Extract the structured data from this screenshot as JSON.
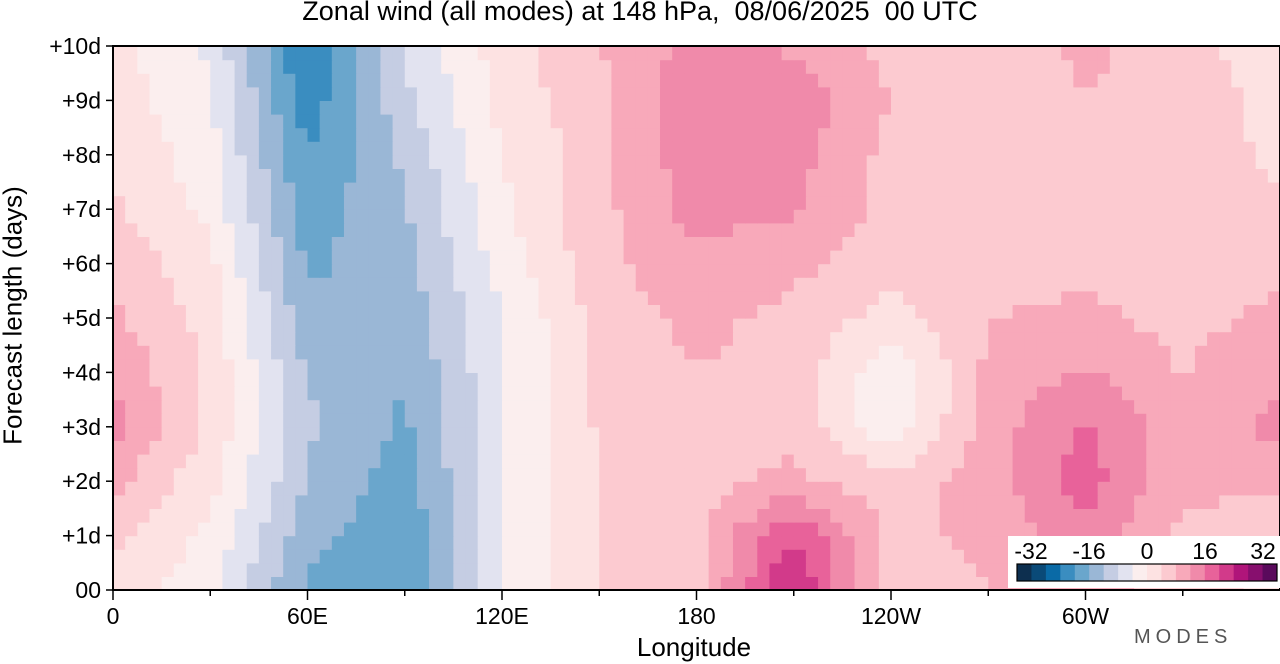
{
  "chart_data": {
    "type": "heatmap",
    "title": "Zonal wind (all modes) at 148 hPa,  08/06/2025  00 UTC",
    "xlabel": "Longitude",
    "ylabel": "Forecast length (days)",
    "x_ticks": [
      "0",
      "60E",
      "120E",
      "180",
      "120W",
      "60W"
    ],
    "y_ticks": [
      "00",
      "+1d",
      "+2d",
      "+3d",
      "+4d",
      "+5d",
      "+6d",
      "+7d",
      "+8d",
      "+9d",
      "+10d"
    ],
    "xlim": [
      0,
      360
    ],
    "ylim": [
      0,
      10
    ],
    "colorbar": {
      "ticks": [
        "-32",
        "-16",
        "0",
        "16",
        "32"
      ],
      "range": [
        -32,
        32
      ],
      "colors": [
        "#0d2f4f",
        "#0a4a78",
        "#0a6aa6",
        "#3a8dc0",
        "#6aa6cc",
        "#9ab7d6",
        "#c5cde3",
        "#e2e3f0",
        "#fbeeee",
        "#fde2e2",
        "#fccad0",
        "#f8a9ba",
        "#f08aaa",
        "#e8629a",
        "#d23a8a",
        "#b0157a",
        "#870f6e",
        "#5a0a5c"
      ]
    },
    "grid": false,
    "wind_field": {
      "days": [
        0,
        1,
        2,
        3,
        4,
        5,
        6,
        7,
        8,
        9,
        10
      ],
      "lons": [
        0,
        30,
        60,
        90,
        120,
        150,
        180,
        210,
        240,
        270,
        300,
        330,
        360
      ],
      "values": [
        [
          2,
          -2,
          -15,
          -18,
          -4,
          4,
          6,
          22,
          4,
          7,
          9,
          5,
          2
        ],
        [
          5,
          -1,
          -13,
          -17,
          -4,
          4,
          6,
          18,
          6,
          8,
          13,
          6,
          5
        ],
        [
          8,
          1,
          -11,
          -16,
          -4,
          4,
          6,
          8,
          5,
          9,
          16,
          8,
          8
        ],
        [
          12,
          3,
          -10,
          -15,
          -4,
          4,
          7,
          6,
          -3,
          9,
          15,
          8,
          12
        ],
        [
          10,
          3,
          -11,
          -14,
          -4,
          5,
          7,
          6,
          -3,
          8,
          11,
          7,
          10
        ],
        [
          8,
          2,
          -13,
          -13,
          -4,
          5,
          8,
          6,
          2,
          7,
          8,
          6,
          8
        ],
        [
          6,
          1,
          -15,
          -12,
          -2,
          6,
          10,
          8,
          5,
          6,
          6,
          5,
          6
        ],
        [
          4,
          -1,
          -16,
          -11,
          -1,
          6,
          12,
          11,
          6,
          5,
          5,
          4,
          4
        ],
        [
          3,
          -2,
          -18,
          -10,
          0,
          6,
          13,
          12,
          6,
          4,
          5,
          5,
          3
        ],
        [
          2,
          -3,
          -20,
          -8,
          1,
          6,
          14,
          13,
          7,
          4,
          7,
          6,
          2
        ],
        [
          1,
          -4,
          -22,
          -7,
          2,
          7,
          12,
          10,
          6,
          5,
          8,
          5,
          1
        ]
      ]
    }
  },
  "brand": "MODES"
}
